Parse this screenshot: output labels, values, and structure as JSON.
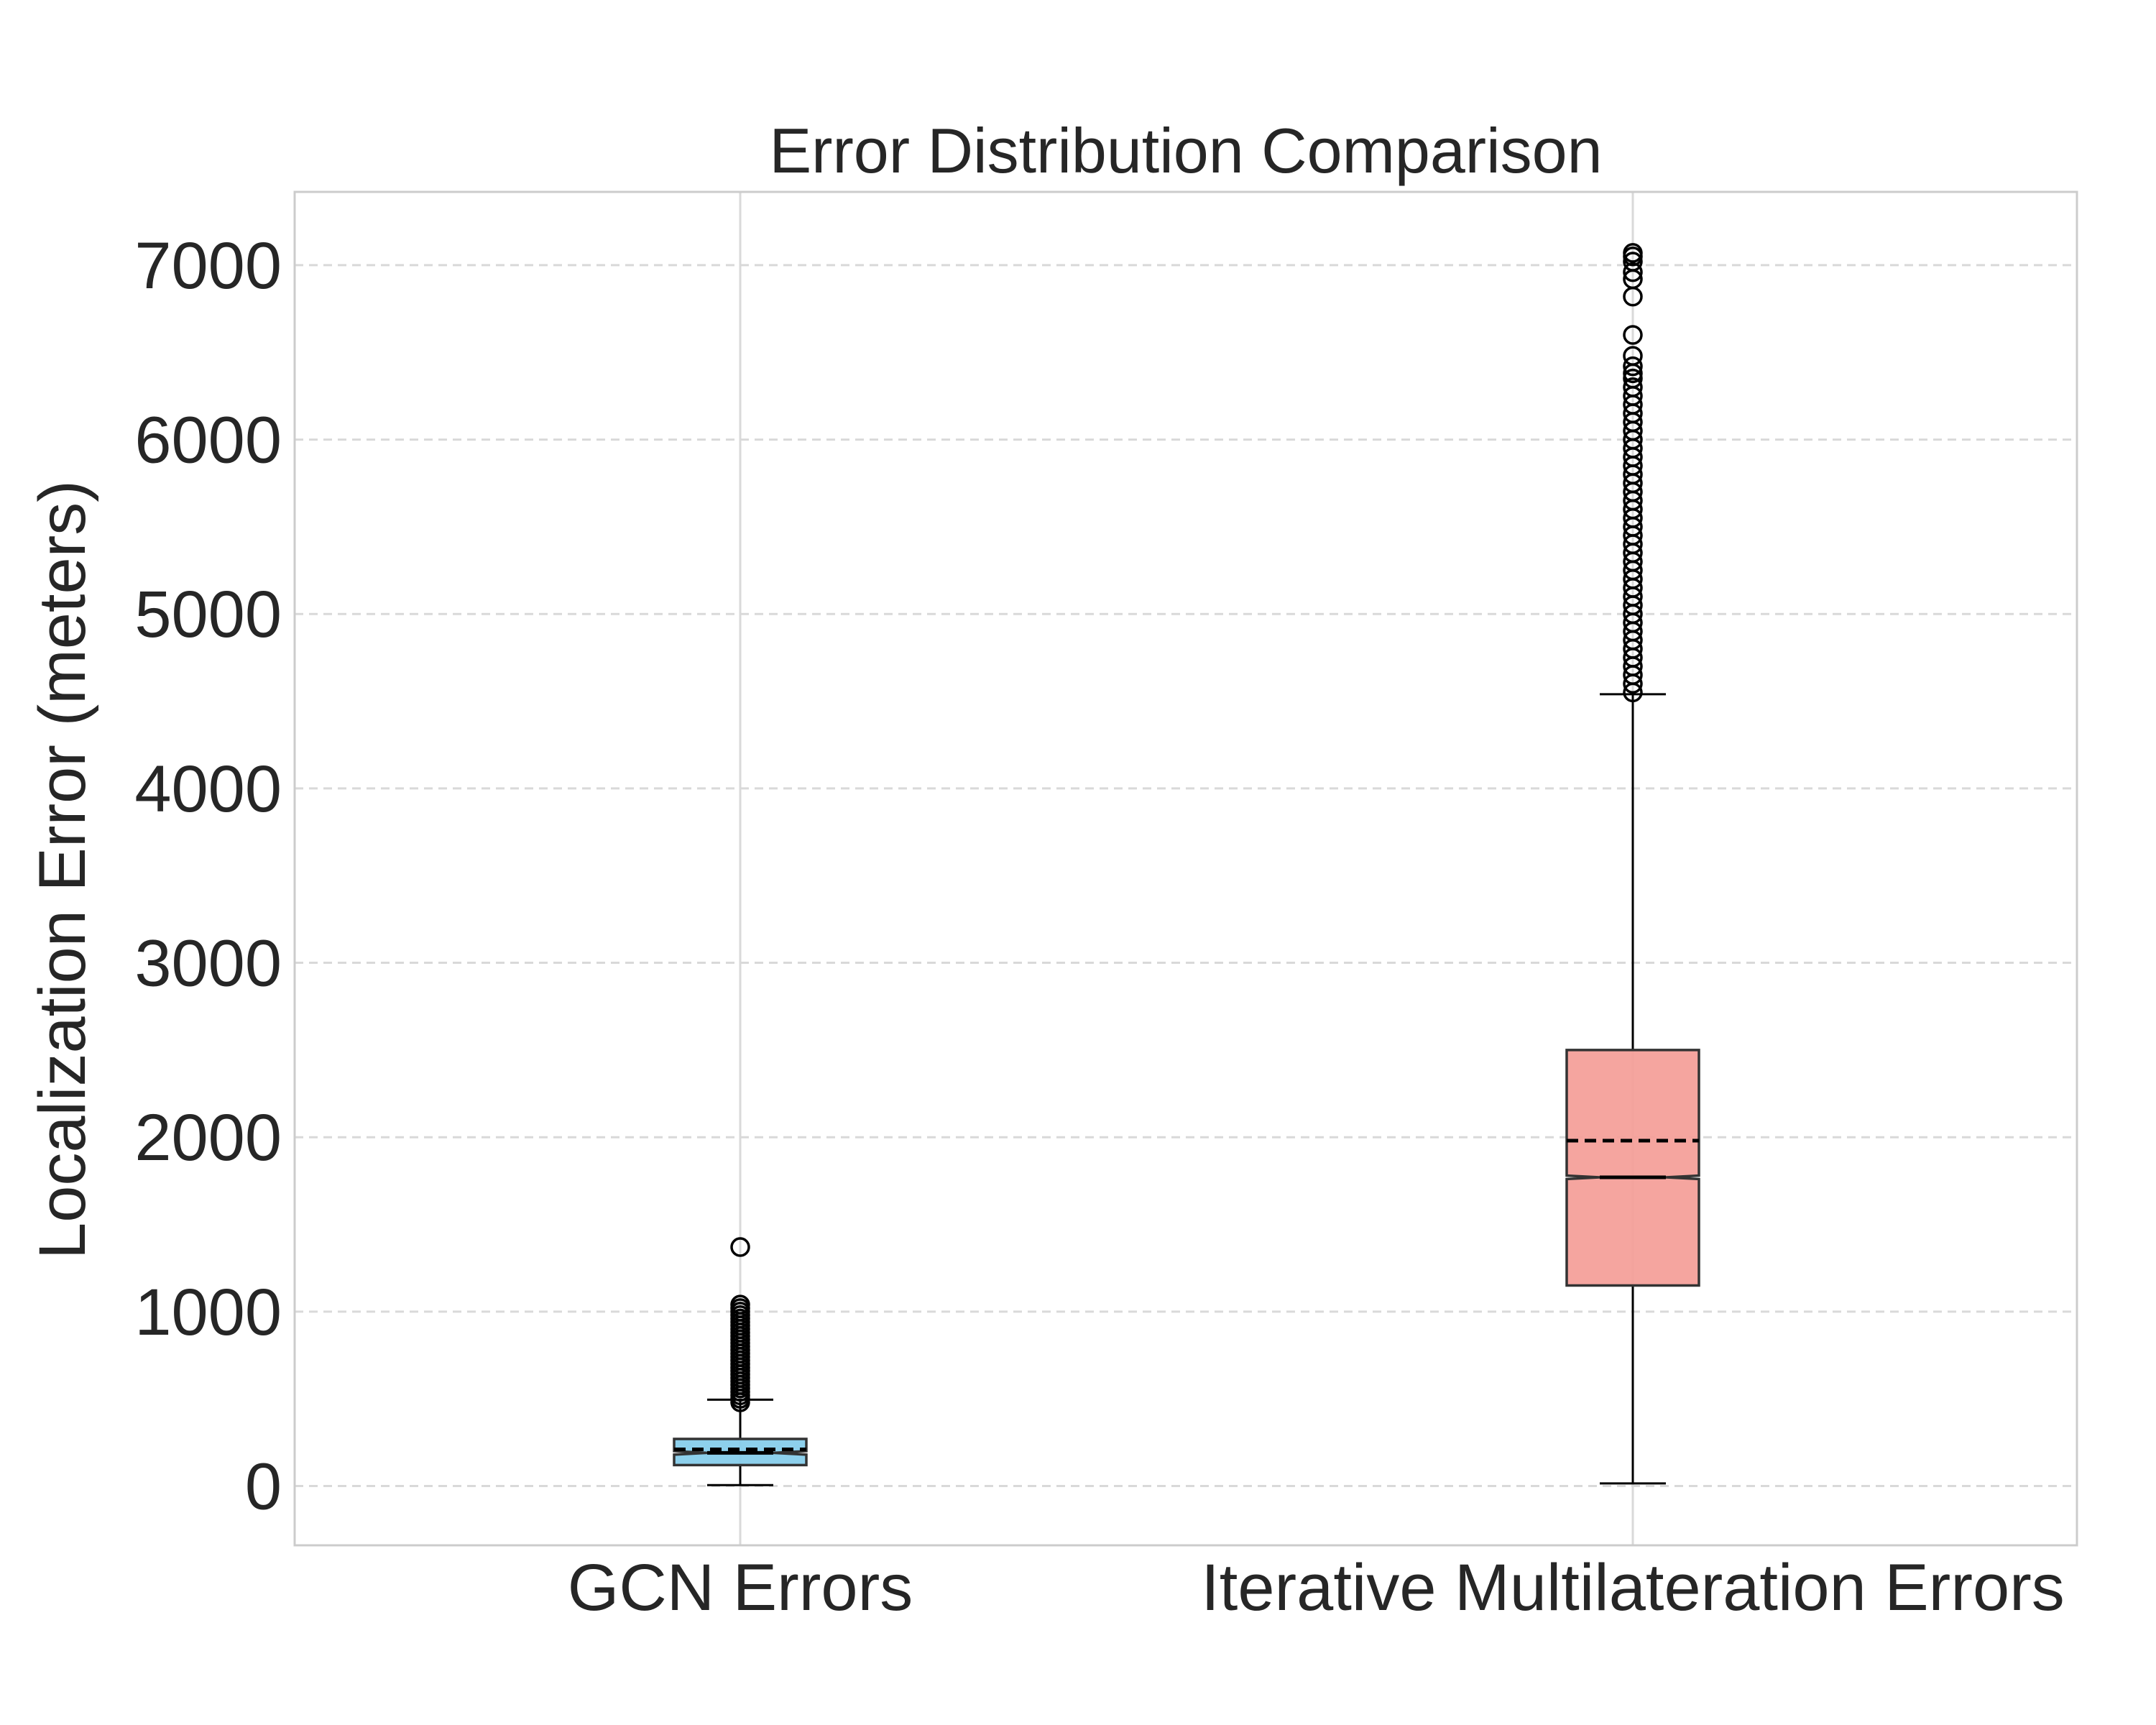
{
  "chart_data": {
    "type": "boxplot",
    "title": "Error Distribution Comparison",
    "xlabel": "",
    "ylabel": "Localization Error (meters)",
    "ylim": [
      -340,
      7420
    ],
    "yticks": [
      0,
      1000,
      2000,
      3000,
      4000,
      5000,
      6000,
      7000
    ],
    "grid": true,
    "notched": true,
    "mean_line": "dashed",
    "categories": [
      "GCN Errors",
      "Iterative Multilateration Errors"
    ],
    "series": [
      {
        "name": "GCN Errors",
        "color": "#87CEEB",
        "whisker_low": 5,
        "q1": 120,
        "median": 190,
        "mean": 210,
        "q3": 270,
        "whisker_high": 495,
        "notch_low": 180,
        "notch_high": 200,
        "outliers": [
          480,
          500,
          520,
          540,
          560,
          580,
          600,
          620,
          640,
          660,
          680,
          700,
          720,
          740,
          760,
          780,
          800,
          820,
          840,
          860,
          880,
          900,
          920,
          940,
          960,
          980,
          1000,
          1020,
          1040,
          1370
        ]
      },
      {
        "name": "Iterative Multilateration Errors",
        "color": "#F4A09A",
        "whisker_low": 15,
        "q1": 1150,
        "median": 1770,
        "mean": 1980,
        "q3": 2500,
        "whisker_high": 4540,
        "notch_low": 1760,
        "notch_high": 1780,
        "outliers": [
          4550,
          4600,
          4650,
          4700,
          4750,
          4800,
          4850,
          4900,
          4950,
          5000,
          5050,
          5100,
          5150,
          5200,
          5250,
          5300,
          5350,
          5400,
          5450,
          5500,
          5550,
          5600,
          5650,
          5700,
          5750,
          5800,
          5850,
          5900,
          5950,
          6000,
          6050,
          6100,
          6150,
          6200,
          6250,
          6300,
          6350,
          6380,
          6420,
          6480,
          6600,
          6820,
          6920,
          6960,
          7020,
          7050,
          7070
        ]
      }
    ]
  }
}
